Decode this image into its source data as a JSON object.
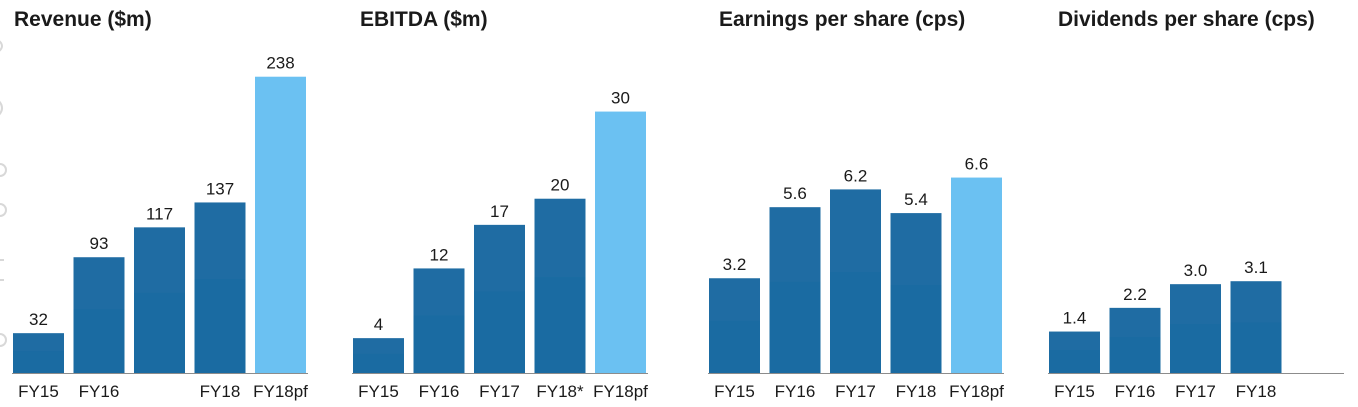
{
  "chart_data": [
    {
      "type": "bar",
      "title": "Revenue ($m)",
      "categories": [
        "FY15",
        "FY16",
        "",
        "FY18",
        "FY18pf"
      ],
      "values": [
        32,
        93,
        117,
        137,
        238
      ],
      "value_labels": [
        "32",
        "93",
        "117",
        "137",
        "238"
      ],
      "highlight": [
        false,
        false,
        false,
        false,
        true
      ],
      "ylim": [
        0,
        245
      ]
    },
    {
      "type": "bar",
      "title": "EBITDA ($m)",
      "categories": [
        "FY15",
        "FY16",
        "FY17",
        "FY18*",
        "FY18pf"
      ],
      "values": [
        4,
        12,
        17,
        20,
        30
      ],
      "value_labels": [
        "4",
        "12",
        "17",
        "20",
        "30"
      ],
      "highlight": [
        false,
        false,
        false,
        false,
        true
      ],
      "ylim": [
        0,
        35
      ]
    },
    {
      "type": "bar",
      "title": "Earnings per share (cps)",
      "categories": [
        "FY15",
        "FY16",
        "FY17",
        "FY18",
        "FY18pf"
      ],
      "values": [
        3.2,
        5.6,
        6.2,
        5.4,
        6.6
      ],
      "value_labels": [
        "3.2",
        "5.6",
        "6.2",
        "5.4",
        "6.6"
      ],
      "highlight": [
        false,
        false,
        false,
        false,
        true
      ],
      "ylim": [
        0,
        10.3
      ]
    },
    {
      "type": "bar",
      "title": "Dividends per share (cps)",
      "categories": [
        "FY15",
        "FY16",
        "FY17",
        "FY18"
      ],
      "values": [
        1.4,
        2.2,
        3.0,
        3.1
      ],
      "value_labels": [
        "1.4",
        "2.2",
        "3.0",
        "3.1"
      ],
      "highlight": [
        false,
        false,
        false,
        false
      ],
      "ylim": [
        0,
        10.3
      ]
    }
  ],
  "colors": {
    "bar": "#1f6ca3",
    "bar_dark": "#176aa2",
    "bar_highlight": "#6bc1f2",
    "axis": "#8c8c8c",
    "text": "#1a1a1a"
  }
}
